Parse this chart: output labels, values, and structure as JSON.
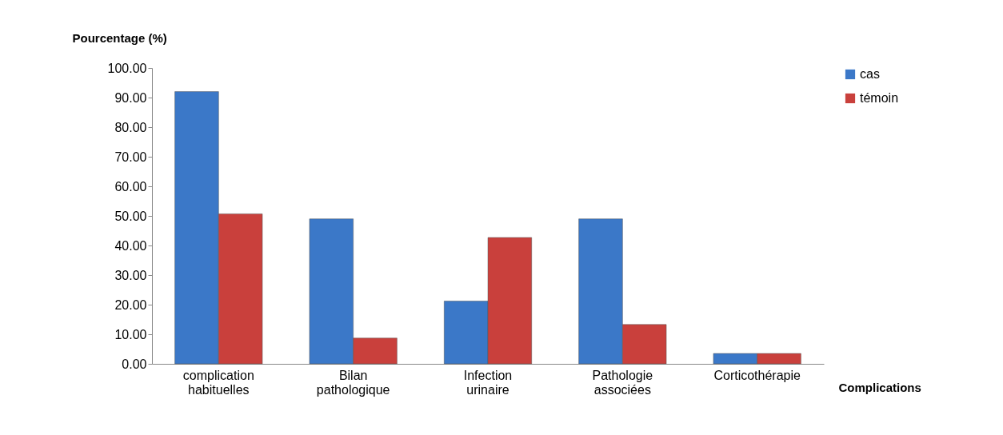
{
  "chart_data": {
    "type": "bar",
    "xlabel": "Complications",
    "ylabel": "Pourcentage (%)",
    "categories": [
      "complication habituelles",
      "Bilan pathologique",
      "Infection urinaire",
      "Pathologie associées",
      "Corticothérapie"
    ],
    "series": [
      {
        "name": "cas",
        "color": "#3b78c8",
        "values": [
          92,
          49,
          21.2,
          49,
          3.5
        ]
      },
      {
        "name": "témoin",
        "color": "#c9403c",
        "values": [
          50.7,
          8.7,
          42.7,
          13.3,
          3.5
        ]
      }
    ],
    "ylim": [
      0,
      100
    ],
    "yticks": [
      {
        "value": 0,
        "label": "0.00"
      },
      {
        "value": 10,
        "label": "10.00"
      },
      {
        "value": 20,
        "label": "20.00"
      },
      {
        "value": 30,
        "label": "30.00"
      },
      {
        "value": 40,
        "label": "40.00"
      },
      {
        "value": 50,
        "label": "50.00"
      },
      {
        "value": 60,
        "label": "60.00"
      },
      {
        "value": 70,
        "label": "70.00"
      },
      {
        "value": 80,
        "label": "80.00"
      },
      {
        "value": 90,
        "label": "90.00"
      },
      {
        "value": 100,
        "label": "100.00"
      }
    ],
    "grid": false,
    "legend": "right"
  }
}
